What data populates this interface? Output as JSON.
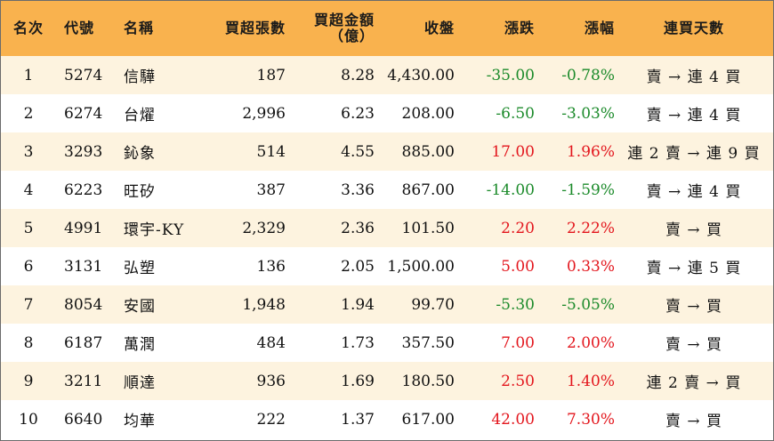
{
  "headers": {
    "rank": "名次",
    "code": "代號",
    "name": "名稱",
    "net_buy_lots": "買超張數",
    "net_buy_amount": "買超金額",
    "net_buy_amount_unit": "（億）",
    "close": "收盤",
    "change": "漲跌",
    "change_pct": "漲幅",
    "streak": "連買天數"
  },
  "colors": {
    "header_bg": "#f9b24e",
    "odd_row_bg": "#fdf3df",
    "even_row_bg": "#ffffff",
    "negative": "#1b8a2a",
    "positive": "#e3161d"
  },
  "rows": [
    {
      "rank": "1",
      "code": "5274",
      "name": "信驊",
      "lots": "187",
      "amount": "8.28",
      "close": "4,430.00",
      "change": "-35.00",
      "pct": "-0.78%",
      "streak": "賣 → 連 4 買",
      "direction": "down"
    },
    {
      "rank": "2",
      "code": "6274",
      "name": "台燿",
      "lots": "2,996",
      "amount": "6.23",
      "close": "208.00",
      "change": "-6.50",
      "pct": "-3.03%",
      "streak": "賣 → 連 4 買",
      "direction": "down"
    },
    {
      "rank": "3",
      "code": "3293",
      "name": "鈊象",
      "lots": "514",
      "amount": "4.55",
      "close": "885.00",
      "change": "17.00",
      "pct": "1.96%",
      "streak": "連 2 賣 → 連 9 買",
      "direction": "up"
    },
    {
      "rank": "4",
      "code": "6223",
      "name": "旺矽",
      "lots": "387",
      "amount": "3.36",
      "close": "867.00",
      "change": "-14.00",
      "pct": "-1.59%",
      "streak": "賣 → 連 4 買",
      "direction": "down"
    },
    {
      "rank": "5",
      "code": "4991",
      "name": "環宇-KY",
      "lots": "2,329",
      "amount": "2.36",
      "close": "101.50",
      "change": "2.20",
      "pct": "2.22%",
      "streak": "賣 → 買",
      "direction": "up"
    },
    {
      "rank": "6",
      "code": "3131",
      "name": "弘塑",
      "lots": "136",
      "amount": "2.05",
      "close": "1,500.00",
      "change": "5.00",
      "pct": "0.33%",
      "streak": "賣 → 連 5 買",
      "direction": "up"
    },
    {
      "rank": "7",
      "code": "8054",
      "name": "安國",
      "lots": "1,948",
      "amount": "1.94",
      "close": "99.70",
      "change": "-5.30",
      "pct": "-5.05%",
      "streak": "賣 → 買",
      "direction": "down"
    },
    {
      "rank": "8",
      "code": "6187",
      "name": "萬潤",
      "lots": "484",
      "amount": "1.73",
      "close": "357.50",
      "change": "7.00",
      "pct": "2.00%",
      "streak": "賣 → 買",
      "direction": "up"
    },
    {
      "rank": "9",
      "code": "3211",
      "name": "順達",
      "lots": "936",
      "amount": "1.69",
      "close": "180.50",
      "change": "2.50",
      "pct": "1.40%",
      "streak": "連 2 賣 → 買",
      "direction": "up"
    },
    {
      "rank": "10",
      "code": "6640",
      "name": "均華",
      "lots": "222",
      "amount": "1.37",
      "close": "617.00",
      "change": "42.00",
      "pct": "7.30%",
      "streak": "賣 → 買",
      "direction": "up"
    }
  ]
}
